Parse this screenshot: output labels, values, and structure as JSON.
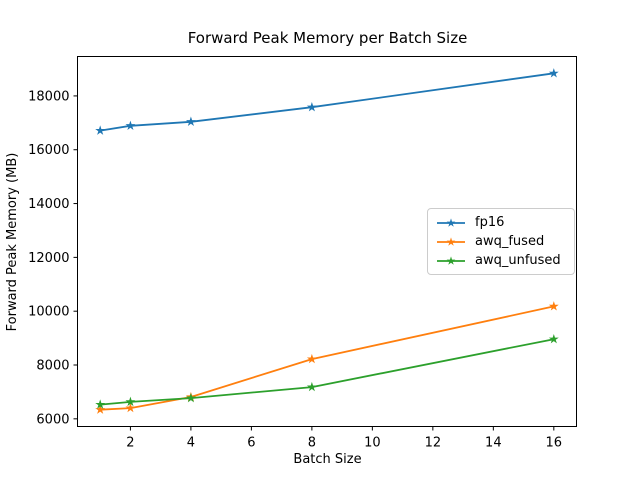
{
  "chart_data": {
    "type": "line",
    "title": "Forward Peak Memory per Batch Size",
    "xlabel": "Batch Size",
    "ylabel": "Forward Peak Memory (MB)",
    "x": [
      1,
      2,
      4,
      8,
      16
    ],
    "series": [
      {
        "name": "fp16",
        "color": "#1f77b4",
        "marker": "star",
        "values": [
          16710,
          16890,
          17040,
          17580,
          18840
        ]
      },
      {
        "name": "awq_fused",
        "color": "#ff7f0e",
        "marker": "star",
        "values": [
          6340,
          6400,
          6810,
          8220,
          10180
        ]
      },
      {
        "name": "awq_unfused",
        "color": "#2ca02c",
        "marker": "star",
        "values": [
          6530,
          6630,
          6770,
          7180,
          8960
        ]
      }
    ],
    "xticks": [
      2,
      4,
      6,
      8,
      10,
      12,
      14,
      16
    ],
    "yticks": [
      6000,
      8000,
      10000,
      12000,
      14000,
      16000,
      18000
    ],
    "xlim": [
      0.25,
      16.75
    ],
    "ylim": [
      5715,
      19465
    ],
    "grid": false,
    "legend": {
      "position": "center right",
      "entries": [
        "fp16",
        "awq_fused",
        "awq_unfused"
      ]
    },
    "axis_color": "#000000",
    "background_color": "#ffffff"
  }
}
